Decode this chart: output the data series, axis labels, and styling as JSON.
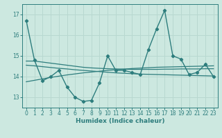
{
  "xlabel": "Humidex (Indice chaleur)",
  "x_values": [
    0,
    1,
    2,
    3,
    4,
    5,
    6,
    7,
    8,
    9,
    10,
    11,
    12,
    13,
    14,
    15,
    16,
    17,
    18,
    19,
    20,
    21,
    22,
    23
  ],
  "main_line": [
    16.7,
    14.8,
    13.8,
    14.0,
    14.3,
    13.5,
    13.0,
    12.8,
    12.85,
    13.7,
    15.0,
    14.3,
    14.3,
    14.2,
    14.1,
    15.3,
    16.3,
    17.2,
    15.0,
    14.85,
    14.1,
    14.2,
    14.6,
    14.0
  ],
  "trend1": [
    14.75,
    14.75,
    14.7,
    14.65,
    14.6,
    14.55,
    14.5,
    14.45,
    14.42,
    14.4,
    14.38,
    14.37,
    14.36,
    14.35,
    14.35,
    14.35,
    14.35,
    14.36,
    14.36,
    14.37,
    14.37,
    14.37,
    14.38,
    14.38
  ],
  "trend2": [
    14.55,
    14.52,
    14.48,
    14.44,
    14.4,
    14.37,
    14.33,
    14.3,
    14.27,
    14.24,
    14.21,
    14.18,
    14.16,
    14.14,
    14.12,
    14.11,
    14.1,
    14.09,
    14.08,
    14.07,
    14.06,
    14.05,
    14.04,
    14.03
  ],
  "trend3": [
    13.75,
    13.82,
    13.89,
    13.96,
    14.02,
    14.08,
    14.13,
    14.18,
    14.22,
    14.26,
    14.3,
    14.33,
    14.36,
    14.39,
    14.41,
    14.43,
    14.45,
    14.46,
    14.47,
    14.48,
    14.49,
    14.5,
    14.51,
    14.52
  ],
  "line_color": "#2d7d7d",
  "bg_color": "#cce8e0",
  "grid_color": "#b8d8d0",
  "ylim": [
    12.5,
    17.5
  ],
  "yticks": [
    13,
    14,
    15,
    16,
    17
  ],
  "xticks": [
    0,
    1,
    2,
    3,
    4,
    5,
    6,
    7,
    8,
    9,
    10,
    11,
    12,
    13,
    14,
    15,
    16,
    17,
    18,
    19,
    20,
    21,
    22,
    23
  ]
}
